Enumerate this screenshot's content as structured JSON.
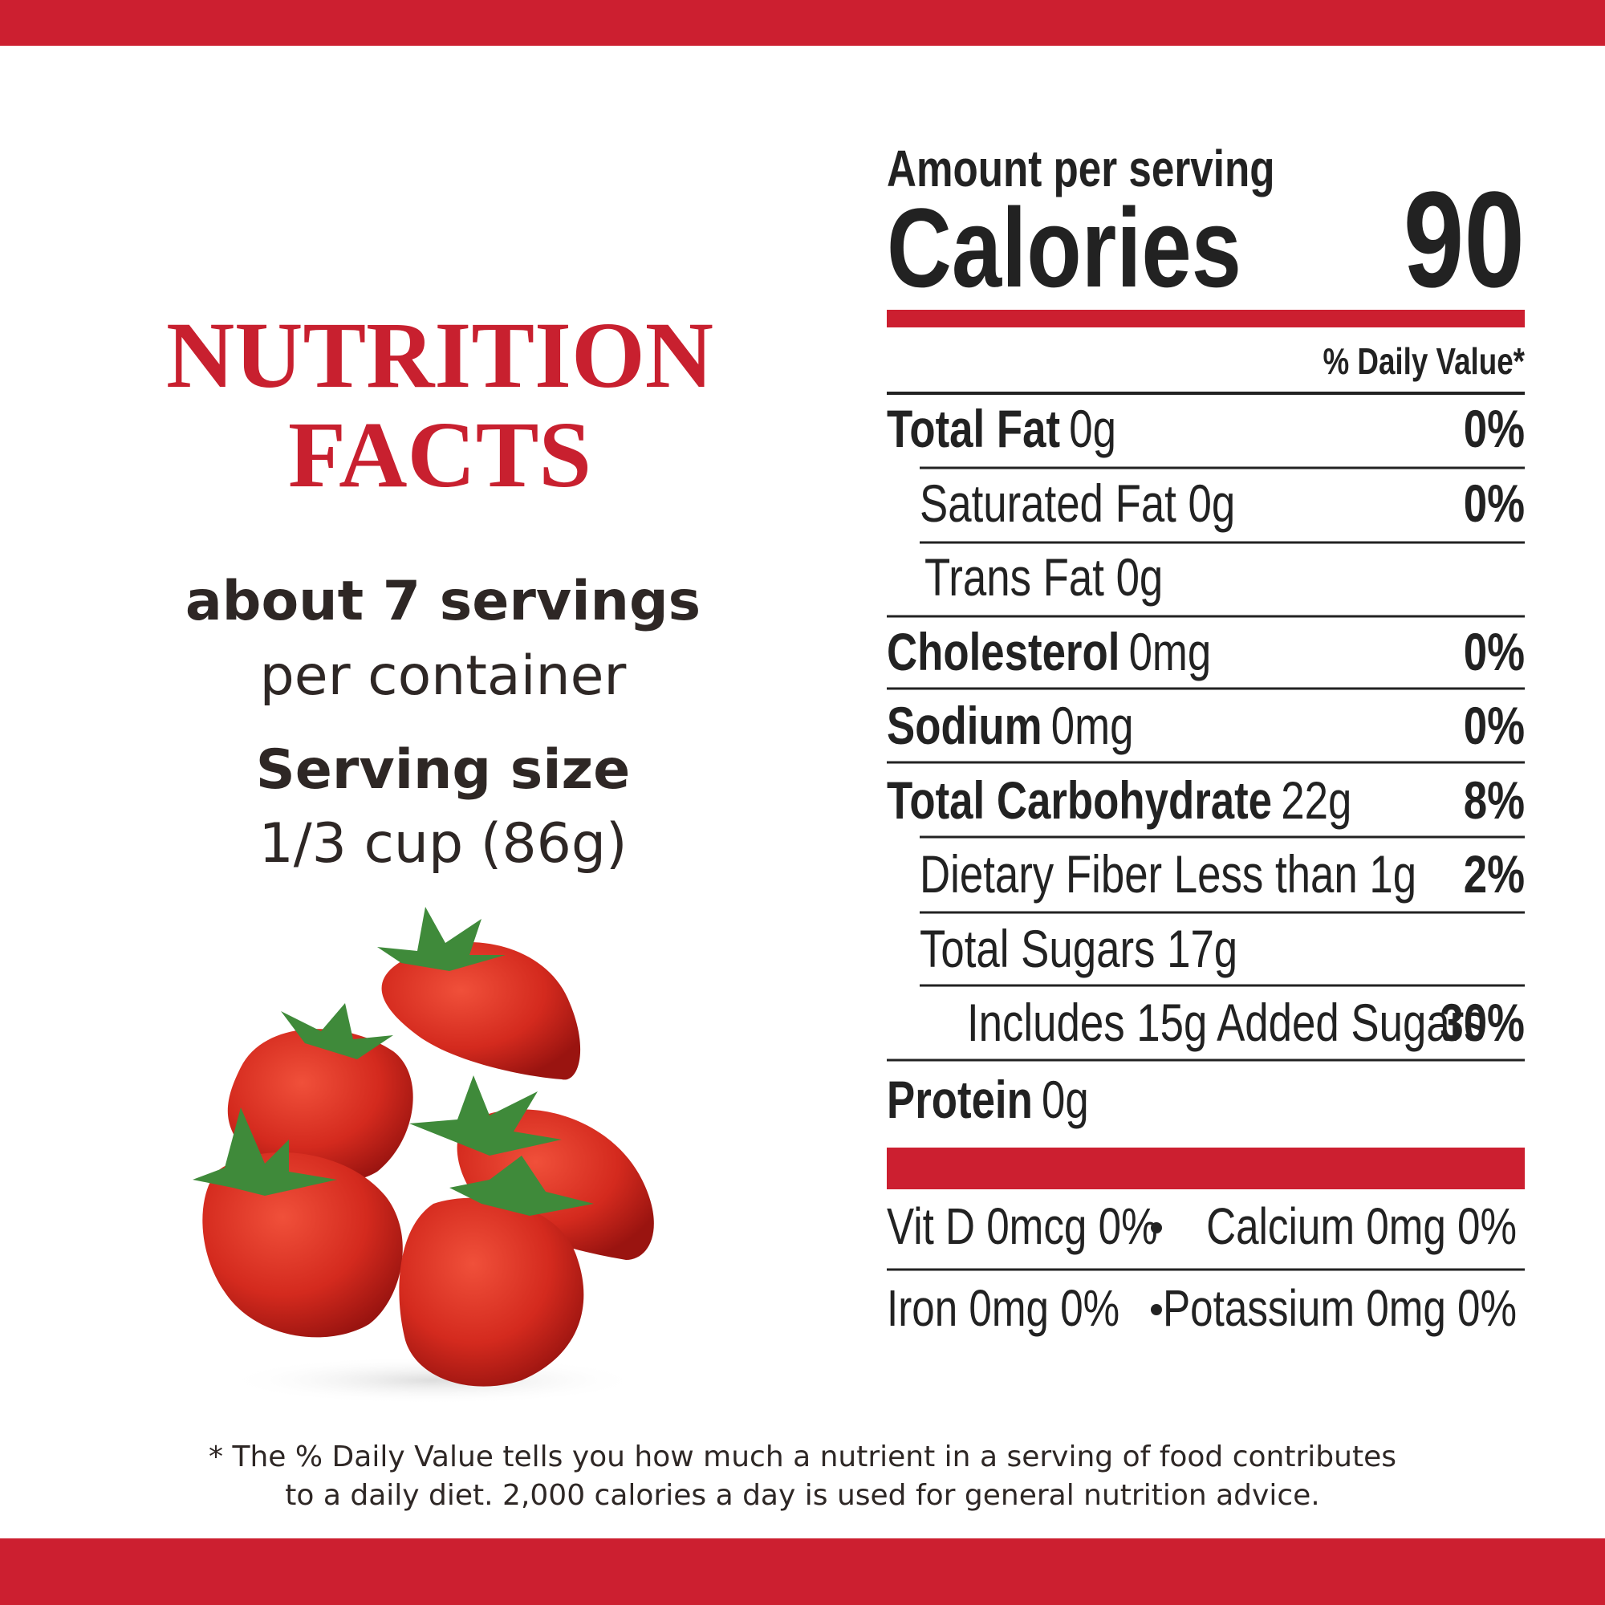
{
  "title_lines": [
    "NUTRITION",
    "FACTS"
  ],
  "servings": {
    "count": "about 7 servings",
    "per": "per container"
  },
  "serving_size": {
    "label": "Serving size",
    "value": "1/3 cup (86g)"
  },
  "panel": {
    "amount_label": "Amount per serving",
    "calories_label": "Calories",
    "calories": 90,
    "daily_value_header": "% Daily Value*",
    "rows": [
      {
        "name": "Total Fat",
        "amount": "0g",
        "dv": "0%"
      },
      {
        "name": "Saturated Fat 0g",
        "dv": "0%"
      },
      {
        "name": "Trans Fat 0g"
      },
      {
        "name": "Cholesterol",
        "amount": "0mg",
        "dv": "0%"
      },
      {
        "name": "Sodium",
        "amount": "0mg",
        "dv": "0%"
      },
      {
        "name": "Total Carbohydrate",
        "amount": "22g",
        "dv": "8%"
      },
      {
        "name": "Dietary Fiber Less than 1g",
        "dv": "2%"
      },
      {
        "name": "Total Sugars 17g"
      },
      {
        "name": "Includes 15g Added Sugars",
        "dv": "30%"
      },
      {
        "name": "Protein",
        "amount": "0g"
      }
    ],
    "minerals": [
      [
        "Vit D 0mcg 0%",
        "Calcium 0mg 0%"
      ],
      [
        "Iron 0mg 0%",
        "Potassium 0mg 0%"
      ]
    ]
  },
  "footnote": [
    "* The % Daily Value tells you how much a nutrient in a serving of food contributes",
    "to a daily diet. 2,000 calories a day is used for general nutrition advice."
  ]
}
